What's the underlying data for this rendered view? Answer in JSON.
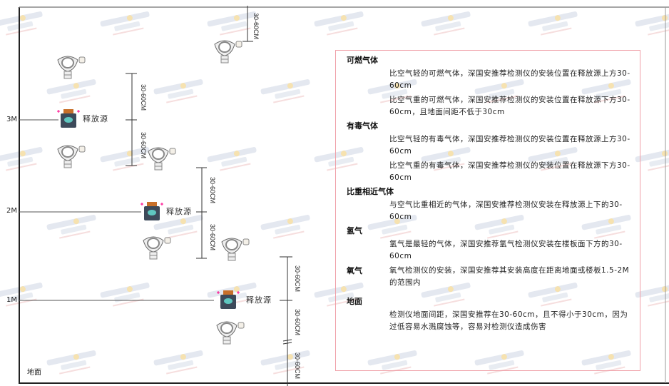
{
  "watermark": {
    "brand": "SINGOAN",
    "cn": "深国安"
  },
  "levels": [
    "3M",
    "2M",
    "1M"
  ],
  "ground_label": "地面",
  "source_label": "释放源",
  "dimension_label": "30-60CM",
  "info": [
    {
      "heading": "可燃气体",
      "paragraphs": [
        "比空气轻的可燃气体，深国安推荐检测仪的安装位置在释放源上方30-60cm",
        "比空气重的可燃气体，深国安推荐检测仪的安装位置在释放源下方30-60cm，且地面间距不低于30cm"
      ]
    },
    {
      "heading": "有毒气体",
      "paragraphs": [
        "比空气轻的有毒气体，深国安推荐检测仪的安装位置在释放源上方30-60cm",
        "比空气重的有毒气体，深国安推荐检测仪的安装位置在释放源下方30-60cm"
      ]
    },
    {
      "heading": "比重相近气体",
      "paragraphs": [
        "与空气比重相近的气体，深国安推荐检测仪安装在释放源上下的30-60cm"
      ]
    },
    {
      "heading": "氢气",
      "paragraphs": [
        "氢气是最轻的气体，深国安推荐氢气检测仪安装在楼板面下方的30-60cm"
      ]
    },
    {
      "heading": "氧气",
      "paragraphs": [
        "氧气检测仪的安装，深国安推荐其安装高度在距离地面或楼板1.5-2M的范围内"
      ]
    },
    {
      "heading": "地面",
      "paragraphs": [
        "检测仪地面间距，深国安推荐在30-60cm，且不得小于30cm，因为过低容易水溅腐蚀等，容易对检测仪造成伤害"
      ]
    }
  ],
  "colors": {
    "frame": "#f0a0a8",
    "source_body": "#3d4a5a",
    "source_face": "#5fc7c0",
    "source_cap": "#c8702a"
  }
}
